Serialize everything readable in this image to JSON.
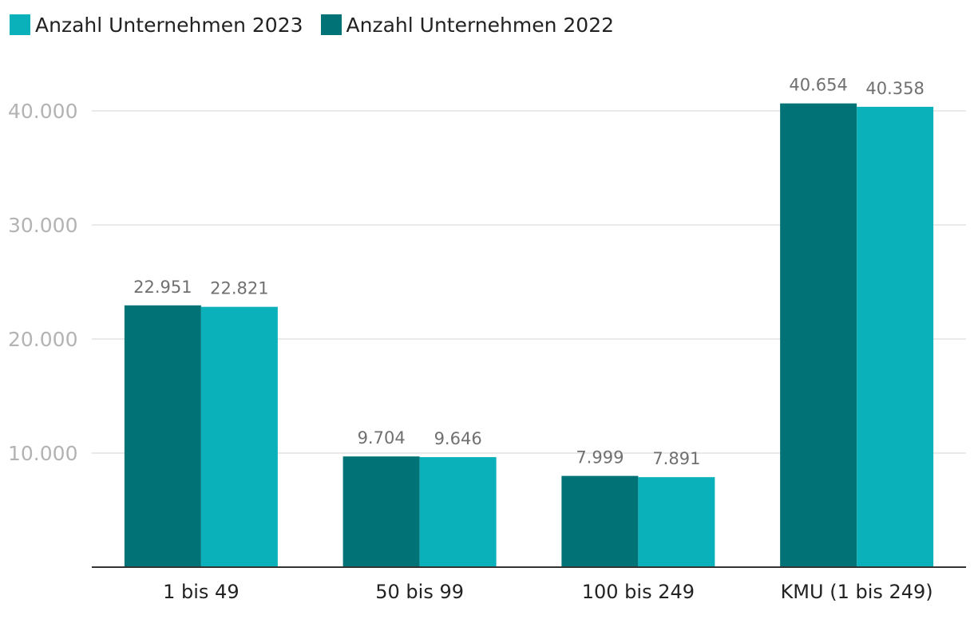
{
  "chart_data": {
    "type": "bar",
    "categories": [
      "1 bis 49",
      "50 bis 99",
      "100 bis 249",
      "KMU (1 bis 249)"
    ],
    "series": [
      {
        "name": "Anzahl Unternehmen 2022",
        "color": "#017377",
        "values": [
          22951,
          9704,
          7999,
          40654
        ]
      },
      {
        "name": "Anzahl Unternehmen 2023",
        "color": "#0AB1BA",
        "values": [
          22821,
          9646,
          7891,
          40358
        ]
      }
    ],
    "legend": [
      {
        "label": "Anzahl Unternehmen 2023",
        "color": "#0AB1BA"
      },
      {
        "label": "Anzahl Unternehmen 2022",
        "color": "#017377"
      }
    ],
    "ylim": [
      0,
      40000
    ],
    "yticks": [
      10000,
      20000,
      30000,
      40000
    ],
    "ytick_labels": [
      "10.000",
      "20.000",
      "30.000",
      "40.000"
    ],
    "value_labels": [
      [
        "22.951",
        "9.704",
        "7.999",
        "40.654"
      ],
      [
        "22.821",
        "9.646",
        "7.891",
        "40.358"
      ]
    ],
    "grid": true,
    "legend_position": "top-left",
    "title": "",
    "xlabel": "",
    "ylabel": ""
  }
}
